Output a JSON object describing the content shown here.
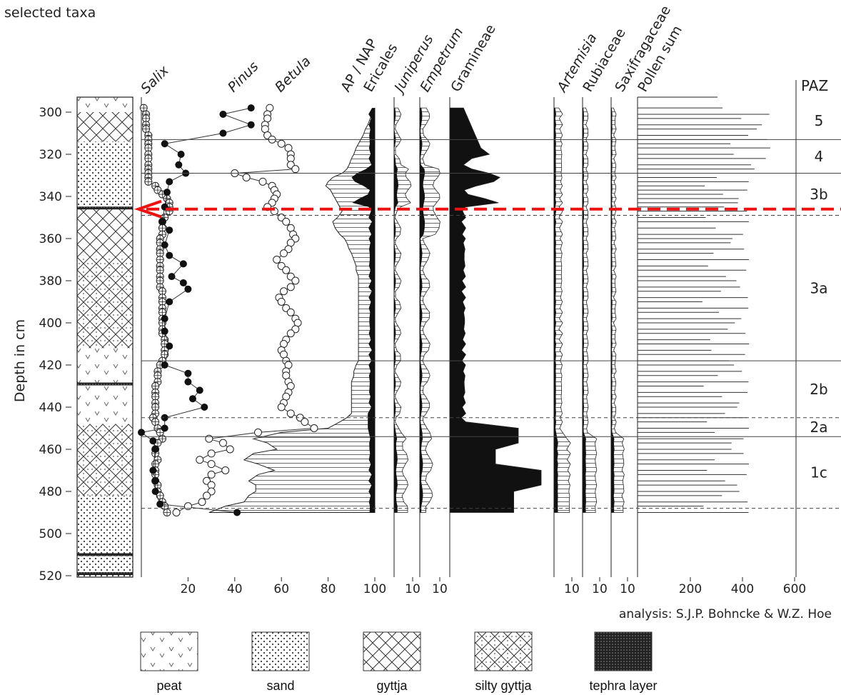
{
  "header": {
    "title": "selected taxa"
  },
  "chart_data": {
    "type": "pollen-diagram",
    "title": "selected taxa",
    "ylabel": "Depth in cm",
    "ylim": [
      295,
      522
    ],
    "y_ticks": [
      300,
      320,
      340,
      360,
      380,
      400,
      420,
      440,
      460,
      480,
      500,
      520
    ],
    "credit": "analysis: S.J.P. Bohncke & W.Z. Hoe",
    "zone_header": "PAZ",
    "taxa_labels": [
      "Salix",
      "Pinus",
      "Betula",
      "AP / NAP",
      "Ericales",
      "Juniperus",
      "Empetrum",
      "Gramineae",
      "Artemisia",
      "Rubiaceae",
      "Saxifragaceae",
      "Pollen sum"
    ],
    "panel_ticks": {
      "main": [
        "20",
        "40",
        "60",
        "80",
        "100"
      ],
      "juniperus": [
        "10"
      ],
      "empetrum": [
        "10"
      ],
      "artemisia": [
        "10"
      ],
      "rubiaceae": [
        "10"
      ],
      "saxifragaceae": [
        "10"
      ],
      "pollen_sum": [
        "200",
        "400",
        "600"
      ]
    },
    "zones": [
      {
        "label": "5",
        "top": 295,
        "bottom": 313
      },
      {
        "label": "4",
        "top": 313,
        "bottom": 329
      },
      {
        "label": "3b",
        "top": 329,
        "bottom": 349
      },
      {
        "label": "3a",
        "top": 349,
        "bottom": 418
      },
      {
        "label": "2b",
        "top": 418,
        "bottom": 445
      },
      {
        "label": "2a",
        "top": 445,
        "bottom": 454
      },
      {
        "label": "1c",
        "top": 454,
        "bottom": 488
      }
    ],
    "zone_lines": [
      {
        "depth": 313,
        "style": "solid"
      },
      {
        "depth": 329,
        "style": "solid"
      },
      {
        "depth": 349,
        "style": "dashed"
      },
      {
        "depth": 418,
        "style": "solid"
      },
      {
        "depth": 445,
        "style": "dashed"
      },
      {
        "depth": 454,
        "style": "solid"
      },
      {
        "depth": 488,
        "style": "dashed"
      }
    ],
    "marker_depth": 346,
    "depths": [
      298,
      301,
      303,
      306,
      308,
      311,
      313,
      315,
      317,
      320,
      322,
      325,
      327,
      329,
      331,
      333,
      335,
      337,
      339,
      341,
      343,
      345,
      347,
      350,
      352,
      355,
      358,
      360,
      362,
      365,
      367,
      370,
      373,
      375,
      378,
      380,
      383,
      385,
      388,
      390,
      393,
      395,
      398,
      400,
      403,
      405,
      408,
      410,
      413,
      415,
      418,
      420,
      423,
      425,
      428,
      430,
      433,
      435,
      438,
      440,
      443,
      445,
      447,
      450,
      452,
      455,
      457,
      460,
      462,
      465,
      467,
      470,
      472,
      475,
      477,
      480,
      482,
      485,
      487,
      490
    ],
    "series": [
      {
        "name": "Salix",
        "marker": "crossed-circle",
        "values": [
          1,
          2,
          2,
          2,
          2,
          3,
          3,
          3,
          3,
          3,
          3,
          3,
          3,
          3,
          3,
          3,
          6,
          7,
          9,
          11,
          12,
          12,
          12,
          10,
          9,
          9,
          9,
          8,
          8,
          8,
          8,
          8,
          8,
          8,
          8,
          8,
          8,
          9,
          9,
          9,
          9,
          9,
          9,
          9,
          9,
          9,
          10,
          10,
          10,
          10,
          9,
          8,
          7,
          7,
          7,
          6,
          6,
          6,
          6,
          6,
          6,
          5,
          6,
          7,
          8,
          9,
          7,
          6,
          6,
          7,
          6,
          6,
          6,
          6,
          7,
          7,
          8,
          9,
          10,
          11
        ]
      },
      {
        "name": "Pinus",
        "marker": "filled-circle",
        "values": [
          null,
          null,
          null,
          null,
          null,
          null,
          null,
          null,
          null,
          null,
          null,
          null,
          null,
          null,
          null,
          null,
          null,
          null,
          null,
          null,
          null,
          null,
          null,
          null,
          null,
          null,
          null,
          null,
          null,
          null,
          null,
          null,
          null,
          null,
          null,
          null,
          null,
          null,
          null,
          null,
          null,
          null,
          null,
          null,
          null,
          null,
          null,
          null,
          null,
          null,
          null,
          null,
          null,
          null,
          null,
          null,
          null,
          null,
          null,
          null,
          null,
          null,
          null,
          null,
          null,
          null,
          null,
          null,
          null,
          null,
          null,
          null,
          null,
          null,
          null,
          null,
          null,
          null,
          null,
          null
        ]
      },
      {
        "name": "Betula",
        "marker": "open-circle",
        "values": [
          55,
          54,
          54,
          53,
          53,
          54,
          56,
          60,
          63,
          64,
          64,
          64,
          66,
          40,
          45,
          52,
          56,
          57,
          58,
          57,
          56,
          54,
          57,
          60,
          62,
          64,
          65,
          66,
          64,
          63,
          61,
          58,
          60,
          62,
          64,
          66,
          64,
          61,
          59,
          60,
          62,
          64,
          66,
          67,
          66,
          64,
          62,
          61,
          60,
          61,
          62,
          63,
          62,
          62,
          63,
          64,
          63,
          62,
          61,
          60,
          64,
          68,
          70,
          74,
          50,
          29,
          35,
          38,
          30,
          25,
          30,
          36,
          30,
          28,
          30,
          30,
          28,
          26,
          20,
          15
        ]
      },
      {
        "name": "AP / NAP",
        "values": [
          100,
          99,
          98,
          97,
          96,
          95,
          94,
          93,
          92,
          91,
          90,
          89,
          88,
          86,
          82,
          80,
          79,
          81,
          82,
          83,
          84,
          85,
          86,
          84,
          82,
          83,
          85,
          87,
          88,
          89,
          90,
          91,
          92,
          92,
          93,
          93,
          93,
          93,
          93,
          93,
          93,
          93,
          93,
          93,
          93,
          93,
          93,
          93,
          93,
          93,
          93,
          92,
          91,
          91,
          90,
          90,
          90,
          90,
          90,
          90,
          90,
          88,
          85,
          80,
          60,
          48,
          54,
          58,
          48,
          44,
          50,
          57,
          50,
          46,
          49,
          49,
          46,
          44,
          36,
          29
        ]
      }
    ]
  },
  "legend": {
    "items": [
      {
        "label": "peat"
      },
      {
        "label": "sand"
      },
      {
        "label": "gyttja"
      },
      {
        "label": "silty gyttja"
      },
      {
        "label": "tephra layer"
      }
    ]
  }
}
